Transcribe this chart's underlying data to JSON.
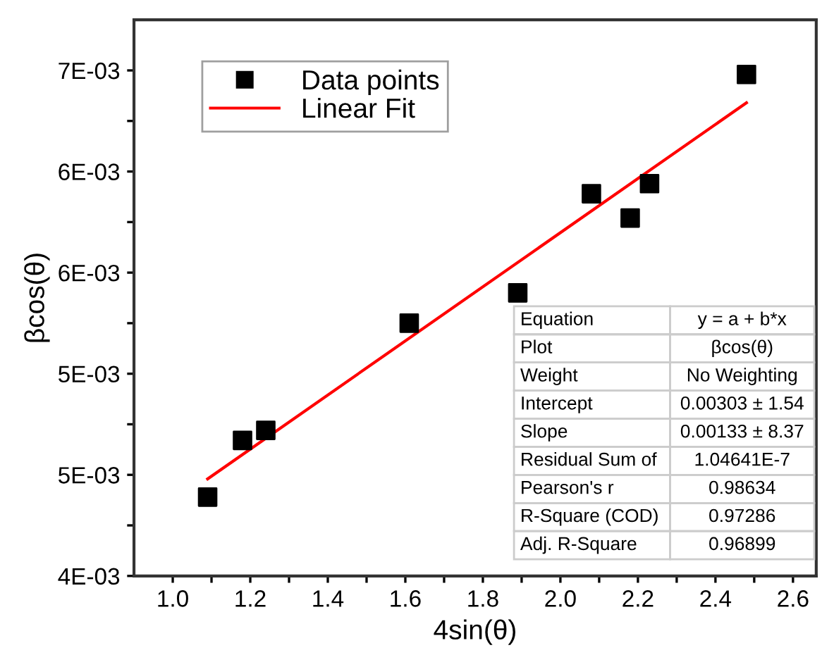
{
  "chart_data": {
    "type": "scatter",
    "xlabel": "4sin(θ)",
    "ylabel": "βcos(θ)",
    "series": [
      {
        "name": "Data points",
        "color": "#000000",
        "marker": "square",
        "x": [
          1.09,
          1.18,
          1.24,
          1.61,
          1.89,
          2.08,
          2.18,
          2.23,
          2.48
        ],
        "values": [
          0.00439,
          0.00467,
          0.00472,
          0.00525,
          0.0054,
          0.00589,
          0.00577,
          0.00594,
          0.00648
        ]
      },
      {
        "name": "Linear Fit",
        "type": "line",
        "color": "#ff0000",
        "line_style": "solid",
        "x": [
          1.09,
          2.48
        ],
        "values": [
          0.00448,
          0.00634
        ]
      }
    ],
    "xlim": [
      0.9,
      2.66
    ],
    "ylim": [
      0.004,
      0.00675
    ],
    "xticks": [
      {
        "value": 1.0,
        "label": "1.0"
      },
      {
        "value": 1.1,
        "label": null
      },
      1.2,
      {
        "value": 1.3,
        "label": null
      },
      1.4,
      {
        "value": 1.5,
        "label": null
      },
      1.6,
      {
        "value": 1.7,
        "label": null
      },
      1.8,
      {
        "value": 1.9,
        "label": null
      },
      {
        "value": 2.0,
        "label": "2.0"
      },
      {
        "value": 2.1,
        "label": null
      },
      2.2,
      {
        "value": 2.3,
        "label": null
      },
      2.4,
      {
        "value": 2.5,
        "label": null
      },
      2.6
    ],
    "yticks": [
      {
        "value": 0.004,
        "label": "4E-03"
      },
      {
        "value": 0.00425,
        "label": null
      },
      {
        "value": 0.0045,
        "label": "5E-03"
      },
      {
        "value": 0.00475,
        "label": null
      },
      {
        "value": 0.005,
        "label": "5E-03"
      },
      {
        "value": 0.00525,
        "label": null
      },
      {
        "value": 0.0055,
        "label": "6E-03"
      },
      {
        "value": 0.00575,
        "label": null
      },
      {
        "value": 0.006,
        "label": "6E-03"
      },
      {
        "value": 0.00625,
        "label": null
      },
      {
        "value": 0.0065,
        "label": "7E-03"
      }
    ],
    "grid": false,
    "legend": "top left",
    "annotations": [
      "Equation",
      "y = a + b*x",
      "Plot",
      "βcos(θ)",
      "Weight",
      "No Weighting",
      "Intercept",
      "0.00303 ± 1.54",
      "Slope",
      "0.00133 ± 8.37",
      "Residual Sum of",
      "1.04641E-7",
      "Pearson's r",
      "0.98634",
      "R-Square (COD)",
      "0.97286",
      "Adj. R-Square",
      "0.96899"
    ]
  }
}
